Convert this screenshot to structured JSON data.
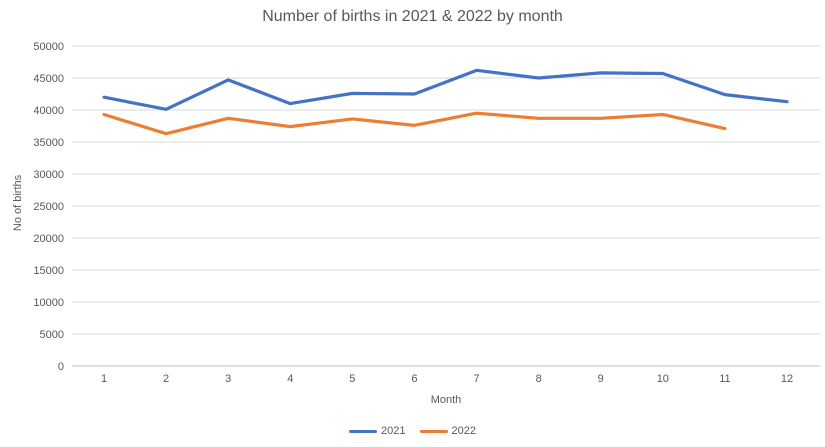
{
  "title": "Number of births in 2021 & 2022 by month",
  "chart_data": {
    "type": "line",
    "x": [
      1,
      2,
      3,
      4,
      5,
      6,
      7,
      8,
      9,
      10,
      11,
      12
    ],
    "series": [
      {
        "name": "2021",
        "color": "#4472C4",
        "values": [
          42000,
          40100,
          44700,
          41000,
          42600,
          42500,
          46200,
          45000,
          45800,
          45700,
          42400,
          41300
        ]
      },
      {
        "name": "2022",
        "color": "#ED7D31",
        "values": [
          39300,
          36300,
          38700,
          37400,
          38600,
          37600,
          39500,
          38700,
          38700,
          39300,
          37100
        ]
      }
    ],
    "title": "Number of births in 2021 & 2022 by month",
    "xlabel": "Month",
    "ylabel": "No of births",
    "ylim": [
      0,
      50000
    ],
    "ytick_step": 5000,
    "ytick_labels": [
      "0",
      "5000",
      "10000",
      "15000",
      "20000",
      "25000",
      "30000",
      "35000",
      "40000",
      "45000",
      "50000"
    ],
    "grid": true,
    "legend_position": "bottom"
  },
  "colors": {
    "gridline": "#D9D9D9",
    "axis_line": "#BFBFBF",
    "tick_text": "#595959",
    "title_text": "#595959",
    "background": "#FFFFFF"
  }
}
